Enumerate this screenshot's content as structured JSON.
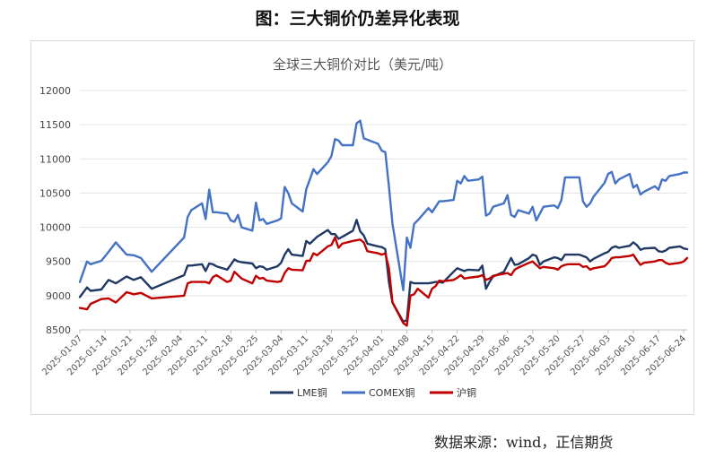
{
  "page": {
    "header": "图：三大铜价仍差异化表现",
    "source": "数据来源：wind，正信期货"
  },
  "chart_data": {
    "type": "line",
    "title": "全球三大铜价对比（美元/吨）",
    "xlabel": "",
    "ylabel": "",
    "ylim": [
      8500,
      12000
    ],
    "yticks": [
      8500,
      9000,
      9500,
      10000,
      10500,
      11000,
      11500,
      12000
    ],
    "grid": true,
    "legend_position": "bottom",
    "x_tick_labels": [
      "2025-01-07",
      "2025-01-14",
      "2025-01-21",
      "2025-01-28",
      "2025-02-04",
      "2025-02-11",
      "2025-02-18",
      "2025-02-25",
      "2025-03-04",
      "2025-03-11",
      "2025-03-18",
      "2025-03-25",
      "2025-04-01",
      "2025-04-08",
      "2025-04-15",
      "2025-04-22",
      "2025-04-29",
      "2025-05-06",
      "2025-05-13",
      "2025-05-20",
      "2025-05-27",
      "2025-06-03",
      "2025-06-10",
      "2025-06-17",
      "2025-06-24"
    ],
    "x": [
      "2025-01-07",
      "2025-01-09",
      "2025-01-10",
      "2025-01-13",
      "2025-01-15",
      "2025-01-17",
      "2025-01-20",
      "2025-01-22",
      "2025-01-24",
      "2025-01-27",
      "2025-02-05",
      "2025-02-06",
      "2025-02-07",
      "2025-02-10",
      "2025-02-11",
      "2025-02-12",
      "2025-02-13",
      "2025-02-14",
      "2025-02-17",
      "2025-02-18",
      "2025-02-19",
      "2025-02-20",
      "2025-02-21",
      "2025-02-24",
      "2025-02-25",
      "2025-02-26",
      "2025-02-27",
      "2025-02-28",
      "2025-03-03",
      "2025-03-04",
      "2025-03-05",
      "2025-03-06",
      "2025-03-07",
      "2025-03-10",
      "2025-03-11",
      "2025-03-12",
      "2025-03-13",
      "2025-03-14",
      "2025-03-17",
      "2025-03-18",
      "2025-03-19",
      "2025-03-20",
      "2025-03-21",
      "2025-03-24",
      "2025-03-25",
      "2025-03-26",
      "2025-03-27",
      "2025-03-28",
      "2025-03-31",
      "2025-04-01",
      "2025-04-02",
      "2025-04-03",
      "2025-04-04",
      "2025-04-07",
      "2025-04-08",
      "2025-04-09",
      "2025-04-10",
      "2025-04-11",
      "2025-04-14",
      "2025-04-15",
      "2025-04-16",
      "2025-04-17",
      "2025-04-18",
      "2025-04-21",
      "2025-04-22",
      "2025-04-23",
      "2025-04-24",
      "2025-04-25",
      "2025-04-28",
      "2025-04-29",
      "2025-04-30",
      "2025-05-01",
      "2025-05-02",
      "2025-05-05",
      "2025-05-06",
      "2025-05-07",
      "2025-05-08",
      "2025-05-09",
      "2025-05-12",
      "2025-05-13",
      "2025-05-14",
      "2025-05-15",
      "2025-05-16",
      "2025-05-19",
      "2025-05-20",
      "2025-05-21",
      "2025-05-22",
      "2025-05-23",
      "2025-05-26",
      "2025-05-27",
      "2025-05-28",
      "2025-05-29",
      "2025-05-30",
      "2025-06-02",
      "2025-06-03",
      "2025-06-04",
      "2025-06-05",
      "2025-06-06",
      "2025-06-09",
      "2025-06-10",
      "2025-06-11",
      "2025-06-12",
      "2025-06-13",
      "2025-06-16",
      "2025-06-17",
      "2025-06-18",
      "2025-06-19",
      "2025-06-20",
      "2025-06-23",
      "2025-06-24",
      "2025-06-25"
    ],
    "series": [
      {
        "name": "LME铜",
        "color": "#203864",
        "values": [
          8980,
          9120,
          9070,
          9090,
          9230,
          9180,
          9280,
          9230,
          9270,
          9100,
          9300,
          9440,
          9440,
          9460,
          9360,
          9470,
          9460,
          9430,
          9380,
          9450,
          9530,
          9500,
          9490,
          9470,
          9400,
          9430,
          9420,
          9380,
          9430,
          9480,
          9600,
          9680,
          9600,
          9580,
          9800,
          9760,
          9810,
          9860,
          9960,
          9900,
          9900,
          9830,
          9860,
          9950,
          10110,
          9940,
          9880,
          9760,
          9720,
          9710,
          9680,
          9200,
          8900,
          8620,
          8640,
          9200,
          9180,
          9180,
          9180,
          9190,
          9200,
          9200,
          9190,
          9350,
          9400,
          9380,
          9360,
          9380,
          9370,
          9440,
          9100,
          9200,
          9280,
          9350,
          9450,
          9550,
          9450,
          9460,
          9550,
          9600,
          9580,
          9450,
          9500,
          9560,
          9550,
          9520,
          9600,
          9600,
          9600,
          9580,
          9560,
          9500,
          9540,
          9620,
          9640,
          9700,
          9720,
          9700,
          9730,
          9780,
          9740,
          9670,
          9690,
          9700,
          9650,
          9640,
          9660,
          9700,
          9720,
          9690,
          9680
        ]
      },
      {
        "name": "COMEX铜",
        "color": "#4472c4",
        "values": [
          9200,
          9500,
          9460,
          9510,
          9640,
          9780,
          9600,
          9590,
          9550,
          9350,
          9850,
          10150,
          10250,
          10350,
          10120,
          10550,
          10220,
          10220,
          10200,
          10100,
          10080,
          10180,
          10000,
          9950,
          10360,
          10100,
          10120,
          10050,
          10100,
          10130,
          10590,
          10500,
          10350,
          10230,
          10560,
          10700,
          10850,
          10780,
          10950,
          11040,
          11290,
          11270,
          11200,
          11200,
          11520,
          11560,
          11300,
          11280,
          11220,
          11120,
          11100,
          10600,
          10050,
          9080,
          9850,
          9700,
          10050,
          10100,
          10280,
          10220,
          10300,
          10380,
          10380,
          10400,
          10680,
          10640,
          10750,
          10680,
          10700,
          10740,
          10170,
          10200,
          10300,
          10350,
          10470,
          10180,
          10150,
          10250,
          10200,
          10300,
          10100,
          10200,
          10300,
          10320,
          10280,
          10400,
          10730,
          10730,
          10730,
          10380,
          10300,
          10350,
          10450,
          10650,
          10780,
          10810,
          10640,
          10700,
          10780,
          10580,
          10620,
          10480,
          10520,
          10600,
          10550,
          10700,
          10680,
          10750,
          10780,
          10800,
          10800
        ]
      },
      {
        "name": "沪铜",
        "color": "#c00000",
        "values": [
          8820,
          8800,
          8880,
          8950,
          8960,
          8900,
          9050,
          9020,
          9040,
          8960,
          9000,
          9180,
          9200,
          9200,
          9200,
          9180,
          9270,
          9300,
          9200,
          9220,
          9350,
          9300,
          9250,
          9180,
          9290,
          9250,
          9260,
          9220,
          9200,
          9210,
          9330,
          9400,
          9380,
          9370,
          9510,
          9510,
          9620,
          9590,
          9720,
          9740,
          9850,
          9700,
          9760,
          9800,
          9810,
          9820,
          9780,
          9650,
          9620,
          9600,
          9620,
          9400,
          8900,
          8600,
          8560,
          9000,
          9020,
          9100,
          8970,
          9100,
          9140,
          9220,
          9210,
          9230,
          9260,
          9300,
          9250,
          9260,
          9280,
          9300,
          9230,
          9250,
          9290,
          9320,
          9330,
          9300,
          9380,
          9410,
          9480,
          9500,
          9450,
          9400,
          9420,
          9400,
          9380,
          9430,
          9450,
          9460,
          9460,
          9420,
          9430,
          9380,
          9400,
          9430,
          9480,
          9550,
          9560,
          9560,
          9580,
          9600,
          9520,
          9450,
          9480,
          9500,
          9520,
          9520,
          9480,
          9460,
          9480,
          9500,
          9550
        ]
      }
    ]
  }
}
